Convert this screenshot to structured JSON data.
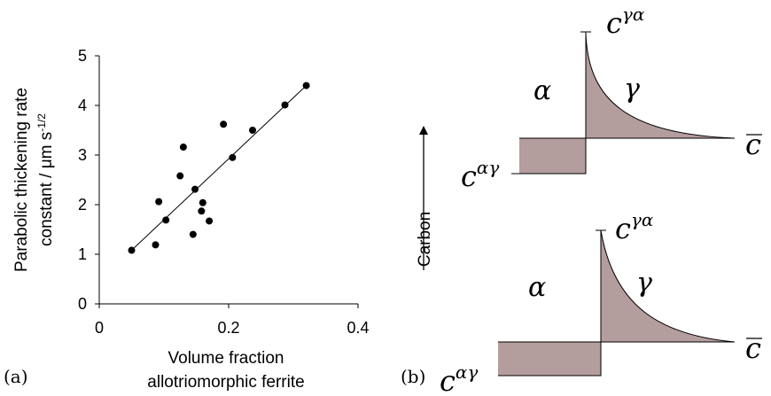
{
  "colors": {
    "fill": "#b49d9d",
    "stroke": "#000000",
    "bg": "#ffffff"
  },
  "panel_a": {
    "tag": "(a)",
    "xlabel_line1": "Volume fraction",
    "xlabel_line2": "allotriomorphic ferrite",
    "ylabel_line1": "Parabolic thickening rate",
    "ylabel_line2_main": "constant / μm s",
    "ylabel_line2_sup": "-1/2"
  },
  "panel_b": {
    "tag": "(b)",
    "axis_label": "Carbon",
    "upper": {
      "alpha": "α",
      "gamma": "γ",
      "c_ag_base": "c",
      "c_ag_sup": "αγ",
      "c_ga_base": "c",
      "c_ga_sup": "γα",
      "cbar": "c"
    },
    "lower": {
      "alpha": "α",
      "gamma": "γ",
      "c_ag_base": "c",
      "c_ag_sup": "αγ",
      "c_ga_base": "c",
      "c_ga_sup": "γα",
      "cbar": "c"
    }
  },
  "chart_data": {
    "type": "scatter",
    "x_ticks": [
      "0",
      "0.2",
      "0.4"
    ],
    "y_ticks": [
      "0",
      "1",
      "2",
      "3",
      "4",
      "5"
    ],
    "xlim": [
      0,
      0.4
    ],
    "ylim": [
      0,
      5
    ],
    "grid": false,
    "legend": "none",
    "points": [
      {
        "x": 0.05,
        "y": 1.08
      },
      {
        "x": 0.087,
        "y": 1.19
      },
      {
        "x": 0.092,
        "y": 2.06
      },
      {
        "x": 0.103,
        "y": 1.69
      },
      {
        "x": 0.125,
        "y": 2.58
      },
      {
        "x": 0.13,
        "y": 3.16
      },
      {
        "x": 0.145,
        "y": 1.4
      },
      {
        "x": 0.148,
        "y": 2.31
      },
      {
        "x": 0.158,
        "y": 1.87
      },
      {
        "x": 0.16,
        "y": 2.04
      },
      {
        "x": 0.17,
        "y": 1.67
      },
      {
        "x": 0.192,
        "y": 3.62
      },
      {
        "x": 0.206,
        "y": 2.95
      },
      {
        "x": 0.237,
        "y": 3.5
      },
      {
        "x": 0.287,
        "y": 4.01
      },
      {
        "x": 0.32,
        "y": 4.4
      }
    ],
    "fit_line": [
      {
        "x": 0.05,
        "y": 1.08
      },
      {
        "x": 0.32,
        "y": 4.4
      }
    ]
  }
}
